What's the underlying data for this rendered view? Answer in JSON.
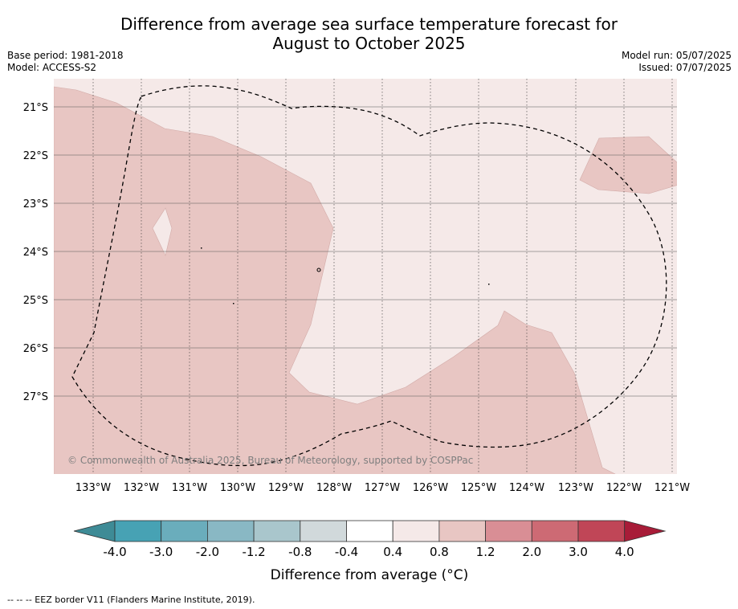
{
  "header": {
    "title_line1": "Difference from average sea surface temperature forecast for",
    "title_line2": "August to October 2025",
    "base_period": "Base period: 1981-2018",
    "model": "Model: ACCESS-S2",
    "model_run": "Model run: 05/07/2025",
    "issued": "Issued: 07/07/2025"
  },
  "map": {
    "lon_labels": [
      "133°W",
      "132°W",
      "131°W",
      "130°W",
      "129°W",
      "128°W",
      "127°W",
      "126°W",
      "125°W",
      "124°W",
      "123°W",
      "122°W",
      "121°W"
    ],
    "lat_labels": [
      "21°S",
      "22°S",
      "23°S",
      "24°S",
      "25°S",
      "26°S",
      "27°S"
    ],
    "copyright": "© Commonwealth of Australia 2025, Bureau of Meteorology, supported by COSPPac",
    "background_category": "0.4 to 0.8",
    "anomaly_category": "0.8 to 1.2"
  },
  "colorbar": {
    "tick_labels": [
      "-4.0",
      "-3.0",
      "-2.0",
      "-1.2",
      "-0.8",
      "-0.4",
      "0.4",
      "0.8",
      "1.2",
      "2.0",
      "3.0",
      "4.0"
    ],
    "colors": [
      "#47a2b4",
      "#6aadbc",
      "#89b8c4",
      "#a9c6cc",
      "#d1d9db",
      "#ffffff",
      "#f5e9e8",
      "#e8c6c3",
      "#d98e95",
      "#cd6a74",
      "#c04657"
    ],
    "under_color": "#3e8b96",
    "over_color": "#a81c38",
    "label": "Difference from average (°C)"
  },
  "footer": {
    "eez_note": "--  --  -- EEZ border V11 (Flanders Marine Institute, 2019)."
  }
}
